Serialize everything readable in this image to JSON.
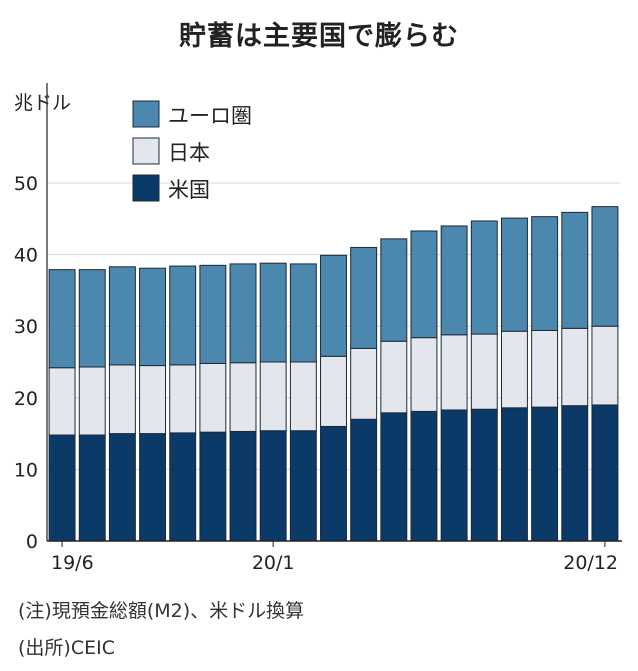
{
  "title": "貯蓄は主要国で膨らむ",
  "unit": "兆ドル",
  "notes": {
    "note": "(注)現預金総額(M2)、米ドル換算",
    "source": "(出所)CEIC"
  },
  "colors": {
    "eurozone": "#4c87ad",
    "japan": "#e4e6ee",
    "us": "#0c3a68",
    "stroke": "#1a2a3a"
  },
  "chart_data": {
    "type": "bar",
    "stacked": true,
    "title": "貯蓄は主要国で膨らむ",
    "ylabel": "兆ドル",
    "ylim": [
      0,
      50
    ],
    "yticks": [
      "0",
      "10",
      "20",
      "30",
      "40",
      "50"
    ],
    "xtick_labels": [
      "19/6",
      "20/1",
      "20/12"
    ],
    "legend": [
      "ユーロ圏",
      "日本",
      "米国"
    ],
    "legend_position": "top-left",
    "categories": [
      "19/6",
      "19/7",
      "19/8",
      "19/9",
      "19/10",
      "19/11",
      "19/12",
      "20/1",
      "20/2",
      "20/3",
      "20/4",
      "20/5",
      "20/6",
      "20/7",
      "20/8",
      "20/9",
      "20/10",
      "20/11",
      "20/12"
    ],
    "series": [
      {
        "name": "米国",
        "values": [
          14.8,
          14.8,
          15.0,
          15.0,
          15.1,
          15.2,
          15.3,
          15.4,
          15.4,
          16.0,
          17.0,
          17.9,
          18.1,
          18.3,
          18.4,
          18.6,
          18.7,
          18.9,
          19.0
        ]
      },
      {
        "name": "日本",
        "values": [
          9.4,
          9.5,
          9.6,
          9.5,
          9.5,
          9.6,
          9.6,
          9.6,
          9.6,
          9.8,
          9.9,
          10.0,
          10.3,
          10.5,
          10.5,
          10.7,
          10.7,
          10.8,
          11.0
        ]
      },
      {
        "name": "ユーロ圏",
        "values": [
          13.7,
          13.6,
          13.7,
          13.6,
          13.8,
          13.7,
          13.8,
          13.8,
          13.7,
          14.1,
          14.1,
          14.3,
          14.9,
          15.2,
          15.8,
          15.8,
          15.9,
          16.2,
          16.7
        ]
      }
    ]
  }
}
